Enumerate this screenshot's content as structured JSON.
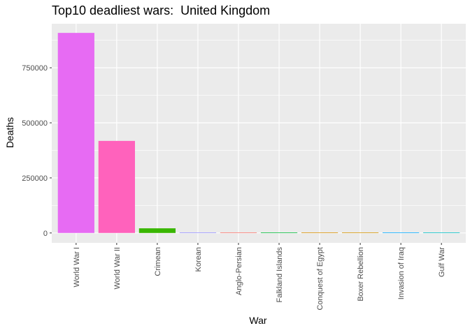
{
  "chart_data": {
    "type": "bar",
    "title": "Top10 deadliest wars:  United Kingdom",
    "xlabel": "War",
    "ylabel": "Deaths",
    "categories": [
      "World War I",
      "World War II",
      "Crimean",
      "Korean",
      "Anglo-Persian",
      "Falkland Islands",
      "Conquest of Egypt",
      "Boxer Rebellion",
      "Invasion of Iraq",
      "Gulf War"
    ],
    "values": [
      908371,
      418000,
      21097,
      1109,
      500,
      255,
      79,
      60,
      47,
      47
    ],
    "colors": [
      "#E76BF3",
      "#FF62BC",
      "#39B600",
      "#9590FF",
      "#F8766D",
      "#00BA38",
      "#D89000",
      "#D39200",
      "#00A9FF",
      "#00BFC4"
    ],
    "yticks": [
      0,
      250000,
      500000,
      750000
    ],
    "ytick_labels": [
      "0",
      "250000",
      "500000",
      "750000"
    ],
    "ylim": [
      -45000,
      950000
    ],
    "grid": true,
    "legend": "none",
    "panel_background": "#EBEBEB",
    "grid_color": "#FFFFFF"
  }
}
